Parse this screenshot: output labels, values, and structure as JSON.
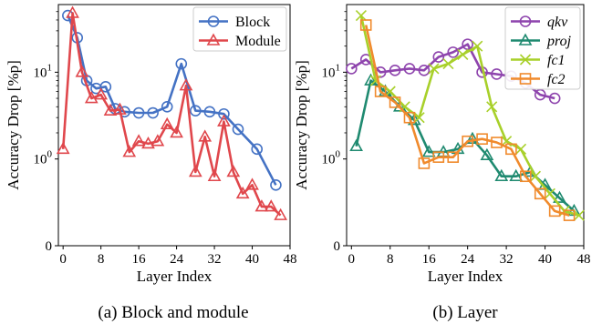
{
  "chart_data": [
    {
      "type": "line",
      "ylabel": "Accuracy Drop [%p]",
      "xlabel": "Layer Index",
      "caption": "(a) Block and module",
      "xlim": [
        -1,
        48
      ],
      "x_ticks": [
        0,
        8,
        16,
        24,
        32,
        40,
        48
      ],
      "y_scale": "symlog",
      "y_ticks": [
        {
          "value": 0,
          "label": "0"
        },
        {
          "value": 1,
          "label": "10^0"
        },
        {
          "value": 10,
          "label": "10^1"
        }
      ],
      "legend": "top-right",
      "series": [
        {
          "name": "Block",
          "color": "#4472c4",
          "marker": "circle",
          "points": [
            [
              1,
              45
            ],
            [
              3,
              25
            ],
            [
              5,
              8
            ],
            [
              7,
              6.5
            ],
            [
              9,
              6.8
            ],
            [
              11,
              3.8
            ],
            [
              13,
              3.5
            ],
            [
              16,
              3.4
            ],
            [
              19,
              3.4
            ],
            [
              22,
              4
            ],
            [
              25,
              12.5
            ],
            [
              28,
              3.6
            ],
            [
              31,
              3.5
            ],
            [
              34,
              3.3
            ],
            [
              37,
              2.2
            ],
            [
              41,
              1.3
            ],
            [
              45,
              0.7
            ]
          ]
        },
        {
          "name": "Module",
          "color": "#e0474c",
          "marker": "triangle",
          "points": [
            [
              0,
              1.3
            ],
            [
              2,
              48
            ],
            [
              4,
              10
            ],
            [
              6,
              5
            ],
            [
              8,
              5.5
            ],
            [
              10,
              3.6
            ],
            [
              12,
              3.7
            ],
            [
              14,
              1.2
            ],
            [
              16,
              1.6
            ],
            [
              18,
              1.5
            ],
            [
              20,
              1.6
            ],
            [
              22,
              2.5
            ],
            [
              24,
              2
            ],
            [
              26,
              7
            ],
            [
              28,
              0.85
            ],
            [
              30,
              1.8
            ],
            [
              32,
              0.8
            ],
            [
              34,
              2.7
            ],
            [
              36,
              0.85
            ],
            [
              38,
              0.6
            ],
            [
              40,
              0.7
            ],
            [
              42,
              0.45
            ],
            [
              44,
              0.45
            ],
            [
              46,
              0.35
            ]
          ]
        }
      ]
    },
    {
      "type": "line",
      "ylabel": "Accuracy Drop [%p]",
      "xlabel": "Layer Index",
      "caption": "(b) Layer",
      "xlim": [
        -1,
        48
      ],
      "x_ticks": [
        0,
        8,
        16,
        24,
        32,
        40,
        48
      ],
      "y_scale": "symlog",
      "y_ticks": [
        {
          "value": 0,
          "label": "0"
        },
        {
          "value": 1,
          "label": "10^0"
        },
        {
          "value": 10,
          "label": "10^1"
        }
      ],
      "legend": "top-right",
      "series": [
        {
          "name": "qkv",
          "color": "#8e44ad",
          "marker": "circle",
          "points": [
            [
              0,
              11
            ],
            [
              3,
              14
            ],
            [
              6,
              10
            ],
            [
              9,
              10.5
            ],
            [
              12,
              11
            ],
            [
              15,
              10.5
            ],
            [
              18,
              15
            ],
            [
              21,
              17
            ],
            [
              24,
              21
            ],
            [
              27,
              10
            ],
            [
              30,
              9.5
            ],
            [
              33,
              9
            ],
            [
              36,
              7.5
            ],
            [
              39,
              5.5
            ],
            [
              42,
              5
            ]
          ]
        },
        {
          "name": "proj",
          "color": "#1f8a70",
          "marker": "triangle",
          "points": [
            [
              1,
              1.4
            ],
            [
              4,
              8
            ],
            [
              7,
              6
            ],
            [
              10,
              4
            ],
            [
              13,
              2.8
            ],
            [
              16,
              1.2
            ],
            [
              19,
              1.2
            ],
            [
              22,
              1.3
            ],
            [
              25,
              1.7
            ],
            [
              28,
              1.1
            ],
            [
              31,
              0.8
            ],
            [
              34,
              0.8
            ],
            [
              37,
              0.85
            ],
            [
              40,
              0.7
            ],
            [
              43,
              0.55
            ],
            [
              46,
              0.4
            ]
          ]
        },
        {
          "name": "fc1",
          "color": "#a8d02a",
          "marker": "x",
          "points": [
            [
              2,
              45
            ],
            [
              5,
              8
            ],
            [
              8,
              6
            ],
            [
              11,
              4
            ],
            [
              14,
              3
            ],
            [
              17,
              11
            ],
            [
              20,
              12.5
            ],
            [
              23,
              16
            ],
            [
              26,
              20
            ],
            [
              29,
              4
            ],
            [
              32,
              1.6
            ],
            [
              35,
              1.3
            ],
            [
              38,
              0.8
            ],
            [
              41,
              0.6
            ],
            [
              44,
              0.4
            ],
            [
              47,
              0.35
            ]
          ]
        },
        {
          "name": "fc2",
          "color": "#f08a2c",
          "marker": "square",
          "points": [
            [
              3,
              35
            ],
            [
              6,
              6
            ],
            [
              9,
              4.5
            ],
            [
              12,
              3
            ],
            [
              15,
              0.95
            ],
            [
              18,
              1.05
            ],
            [
              21,
              1.05
            ],
            [
              24,
              1.6
            ],
            [
              27,
              1.7
            ],
            [
              30,
              1.55
            ],
            [
              33,
              1.3
            ],
            [
              36,
              0.8
            ],
            [
              39,
              0.6
            ],
            [
              42,
              0.4
            ],
            [
              45,
              0.35
            ]
          ]
        }
      ]
    }
  ]
}
